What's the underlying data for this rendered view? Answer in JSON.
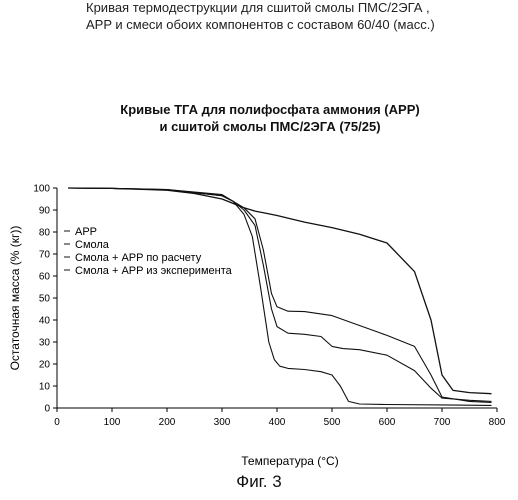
{
  "header": {
    "line1": "Кривая термодеструкции для сшитой смолы ПМС/2ЭГА ,",
    "line2": "APP и смеси обоих компонентов с составом 60/40 (масс.)"
  },
  "figure_label": "Фиг. 3",
  "chart_data": {
    "type": "line",
    "title": "Кривые ТГА для полифосфата аммония (APP)",
    "subtitle": "и сшитой смолы ПМС/2ЭГА (75/25)",
    "xlabel": "Температура (°C)",
    "ylabel": "Остаточная масса (% (кг))",
    "xlim": [
      0,
      800
    ],
    "ylim": [
      0,
      100
    ],
    "xticks": [
      0,
      100,
      200,
      300,
      400,
      500,
      600,
      700,
      800
    ],
    "yticks": [
      0,
      10,
      20,
      30,
      40,
      50,
      60,
      70,
      80,
      90,
      100
    ],
    "grid": false,
    "legend_position": "left",
    "series": [
      {
        "name": "APP",
        "x": [
          20,
          100,
          200,
          250,
          300,
          320,
          340,
          360,
          380,
          400,
          450,
          500,
          550,
          600,
          650,
          680,
          700,
          720,
          750,
          790
        ],
        "y": [
          100,
          99.8,
          99,
          97.5,
          95,
          93,
          91,
          89.5,
          88.5,
          87.5,
          84.5,
          82,
          79,
          75,
          62,
          40,
          15,
          8,
          7,
          6.5
        ]
      },
      {
        "name": "Смола",
        "x": [
          20,
          100,
          200,
          300,
          320,
          340,
          355,
          370,
          385,
          395,
          405,
          420,
          450,
          480,
          500,
          515,
          530,
          550,
          600,
          700,
          790
        ],
        "y": [
          100,
          99.8,
          99.3,
          97,
          94,
          88,
          78,
          55,
          30,
          22,
          19,
          18,
          17.5,
          16.5,
          15,
          10,
          3,
          1.8,
          1.6,
          1.4,
          1.2
        ]
      },
      {
        "name": "Смола + APP по расчету",
        "x": [
          20,
          100,
          200,
          300,
          320,
          340,
          360,
          375,
          390,
          400,
          420,
          450,
          480,
          500,
          520,
          550,
          600,
          650,
          680,
          700,
          750,
          790
        ],
        "y": [
          100,
          99.8,
          99.3,
          96.5,
          94,
          90,
          83,
          65,
          45,
          37,
          34,
          33.5,
          32.5,
          28,
          27,
          26.5,
          24,
          17,
          9,
          4.5,
          3.5,
          3
        ]
      },
      {
        "name": "Смола + APP из эксперимента",
        "x": [
          20,
          100,
          200,
          300,
          320,
          340,
          360,
          375,
          390,
          400,
          420,
          450,
          500,
          550,
          600,
          650,
          680,
          700,
          750,
          790
        ],
        "y": [
          100,
          99.8,
          99.2,
          96.5,
          94,
          91,
          86,
          72,
          52,
          46,
          44,
          43.8,
          42,
          37.5,
          33,
          28,
          15,
          5,
          3,
          2.5
        ]
      }
    ]
  }
}
